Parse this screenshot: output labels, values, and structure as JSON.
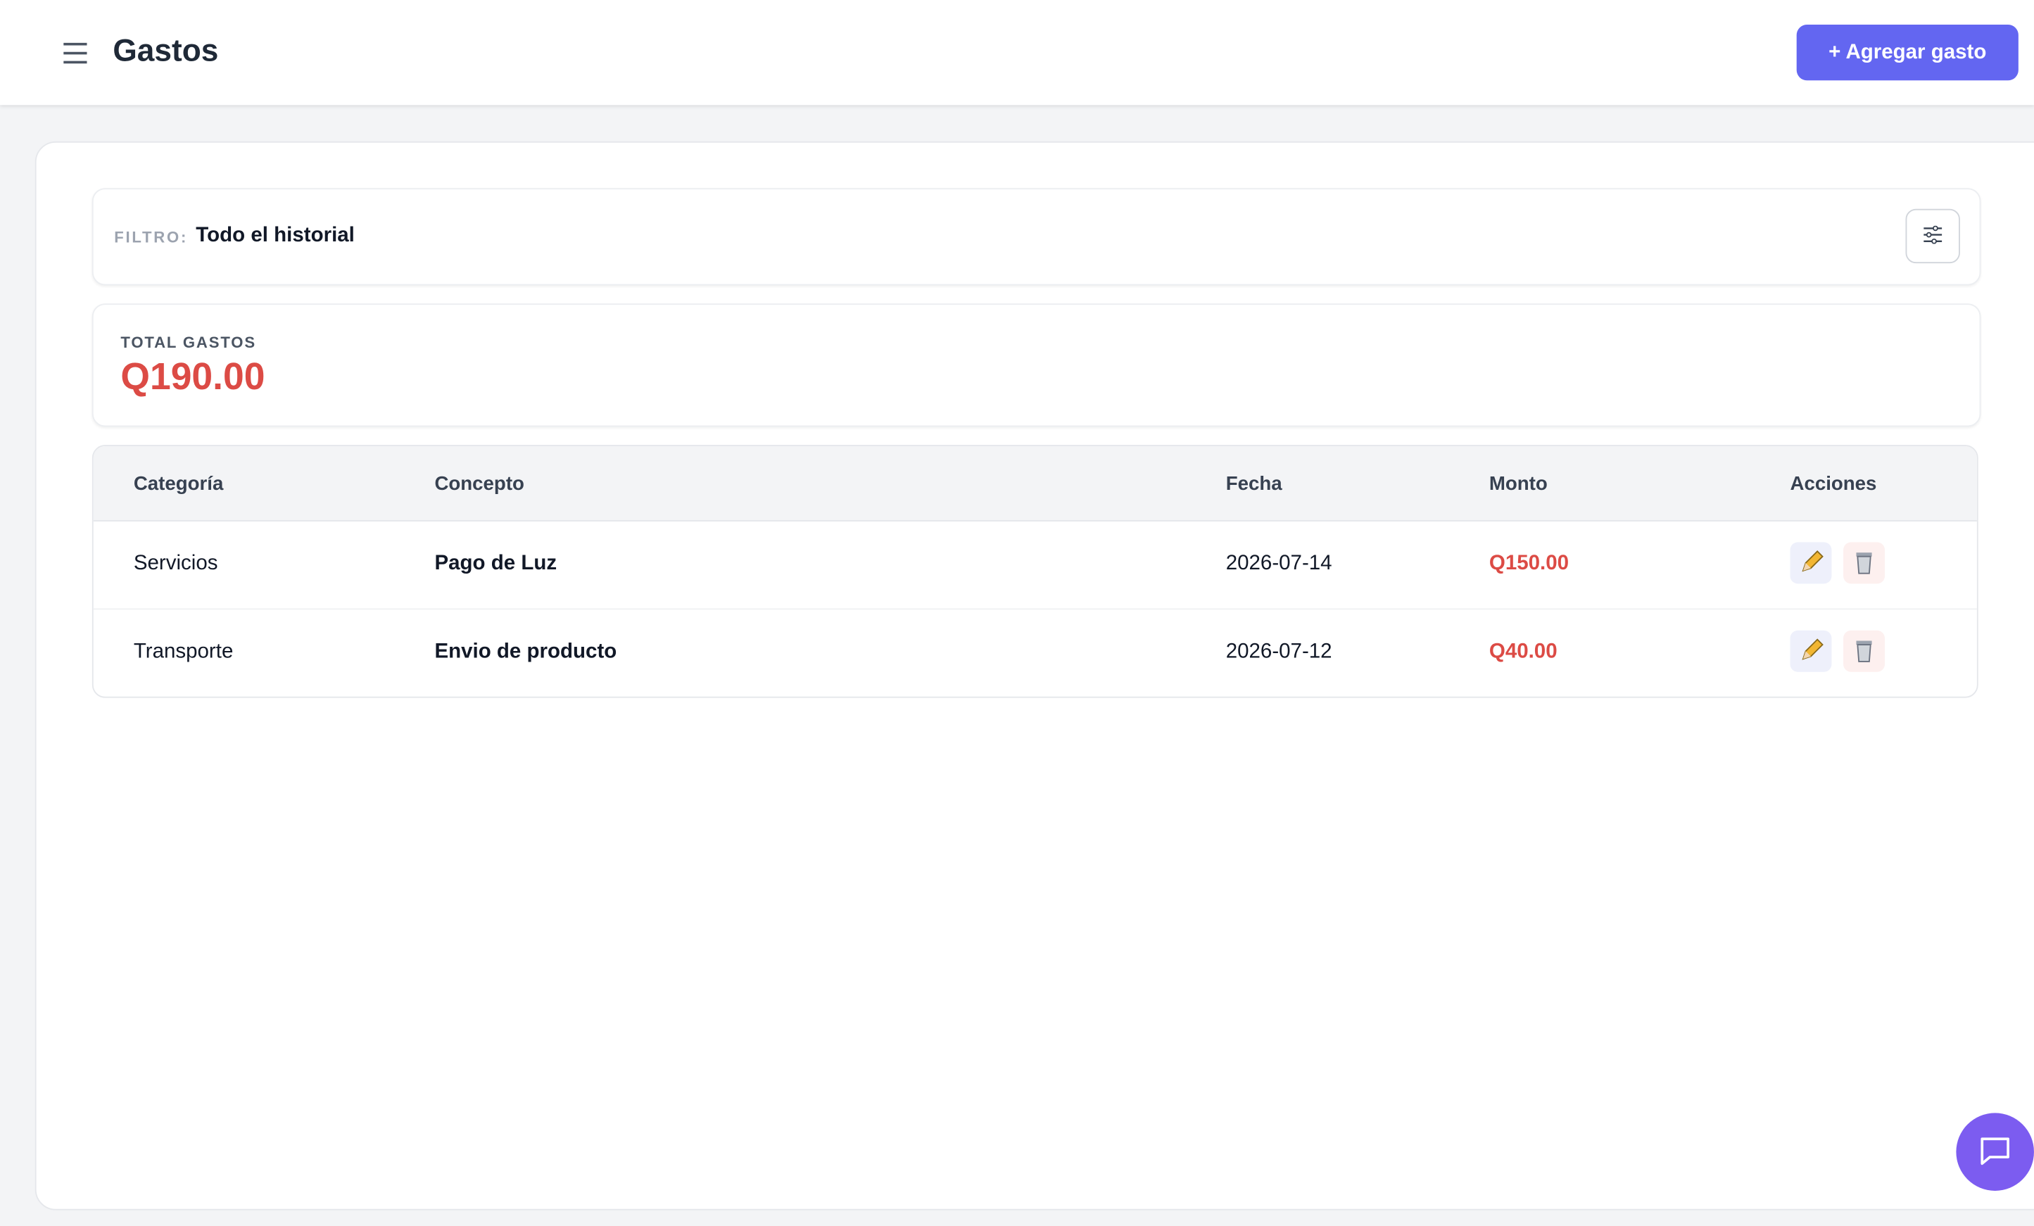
{
  "header": {
    "title": "Gastos",
    "button": "+ Agregar gasto"
  },
  "filter": {
    "label": "FILTRO:",
    "value": "Todo el historial"
  },
  "summary": {
    "label": "TOTAL GASTOS",
    "value": "Q190.00"
  },
  "table": {
    "columns": [
      "Categoría",
      "Concepto",
      "Fecha",
      "Monto",
      "Acciones"
    ],
    "rows": [
      [
        "Servicios",
        "Pago de Luz",
        "2026-07-14",
        "Q150.00"
      ],
      [
        "Transporte",
        "Envio de producto",
        "2026-07-12",
        "Q40.00"
      ]
    ]
  }
}
